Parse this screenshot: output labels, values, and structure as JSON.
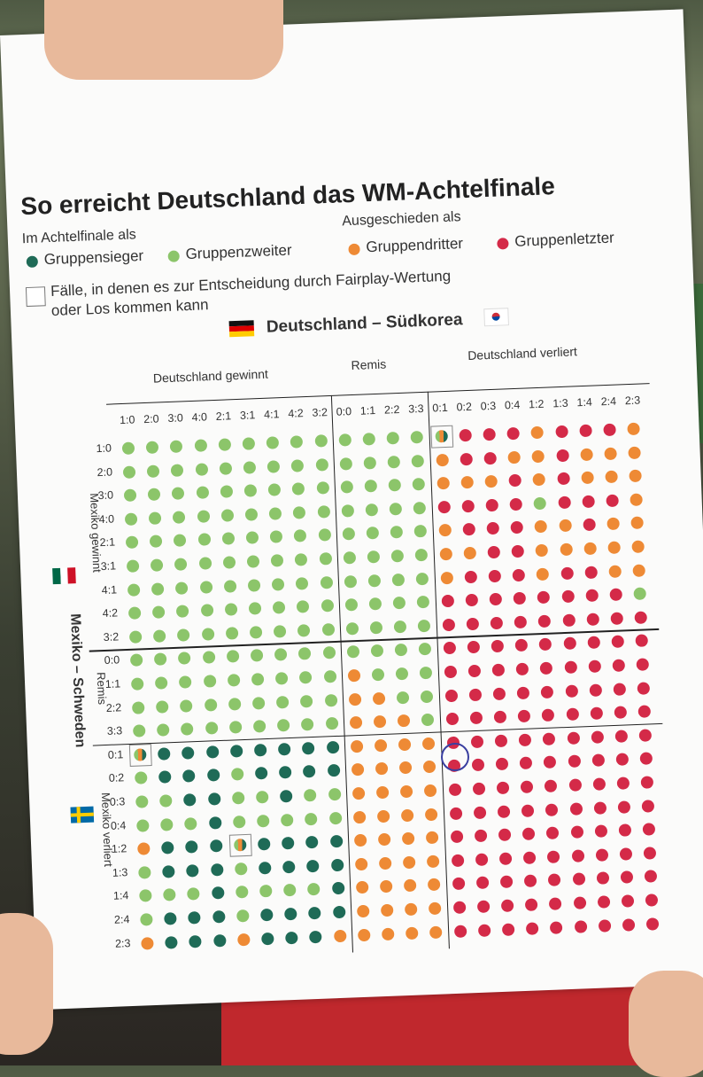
{
  "title": "So erreicht Deutschland das WM-Achtelfinale",
  "legend": {
    "achtelfinale_header": "Im Achtelfinale als",
    "ausgeschieden_header": "Ausgeschieden als",
    "gruppensieger": "Gruppensieger",
    "gruppenzweiter": "Gruppenzweiter",
    "gruppendritter": "Gruppendritter",
    "gruppenletzter": "Gruppenletzter",
    "fairplay_line1": "Fälle, in denen es zur Entscheidung durch Fairplay-Wertung",
    "fairplay_line2": "oder Los kommen kann"
  },
  "colors": {
    "gruppensieger": "#1f6b57",
    "gruppenzweiter": "#8cc56a",
    "gruppendritter": "#ee8a35",
    "gruppenletzter": "#d42a48"
  },
  "chart_data": {
    "type": "table",
    "col_match": "Deutschland – Südkorea",
    "row_match": "Mexiko – Schweden",
    "col_groups": [
      "Deutschland gewinnt",
      "Remis",
      "Deutschland verliert"
    ],
    "row_groups": [
      "Mexiko gewinnt",
      "Remis",
      "Mexiko verliert"
    ],
    "columns": [
      "1:0",
      "2:0",
      "3:0",
      "4:0",
      "2:1",
      "3:1",
      "4:1",
      "4:2",
      "3:2",
      "0:0",
      "1:1",
      "2:2",
      "3:3",
      "0:1",
      "0:2",
      "0:3",
      "0:4",
      "1:2",
      "1:3",
      "1:4",
      "2:4",
      "2:3"
    ],
    "rows": [
      "1:0",
      "2:0",
      "3:0",
      "4:0",
      "2:1",
      "3:1",
      "4:1",
      "4:2",
      "3:2",
      "0:0",
      "1:1",
      "2:2",
      "3:3",
      "0:1",
      "0:2",
      "0:3",
      "0:4",
      "1:2",
      "1:3",
      "1:4",
      "2:4",
      "2:3"
    ],
    "legend_codes": {
      "S": "Gruppensieger",
      "Z": "Gruppenzweiter",
      "D": "Gruppendritter",
      "L": "Gruppenletzter",
      "M": "Fairplay/Los"
    },
    "cells": [
      "ZZZZZZZZZZZZZMLLLDLLLD",
      "ZZZZZZZZZZZZZDLLDDLDDD",
      "ZZZZZZZZZZZZZDDDLDLDDD",
      "ZZZZZZZZZZZZZLLLLZLLLD",
      "ZZZZZZZZZZZZZDLLLDDLDD",
      "ZZZZZZZZZZZZZDDLLDDDDD",
      "ZZZZZZZZZZZZZDLLLDLLDD",
      "ZZZZZZZZZZZZZLLLLLLLLZ",
      "ZZZZZZZZZZZZZLLLLLLLLL",
      "ZZZZZZZZZZZZZLLLLLLLLL",
      "ZZZZZZZZZDZZZLLLLLLLLL",
      "ZZZZZZZZZDDZZLLLLLLLLL",
      "ZZZZZZZZZDDDZLLLLLLLLL",
      "MSSSSSSSSDDDDLLLLLLLLL",
      "ZSSSZSSSSDDDDLLLLLLLLL",
      "ZZSSZZSZZDDDDLLLLLLLLL",
      "ZZZSZZZZZDDDDLLLLLLLLL",
      "DSSSMSSSSDDDDLLLLLLLLL",
      "ZSSSZSSSSDDDDLLLLLLLLL",
      "ZZZSZZZZSDDDDLLLLLLLLL",
      "ZSSSZSSSSDDDDLLLLLLLLL",
      "DSSSDSSSDDDDDLLLLLLLLL"
    ]
  }
}
